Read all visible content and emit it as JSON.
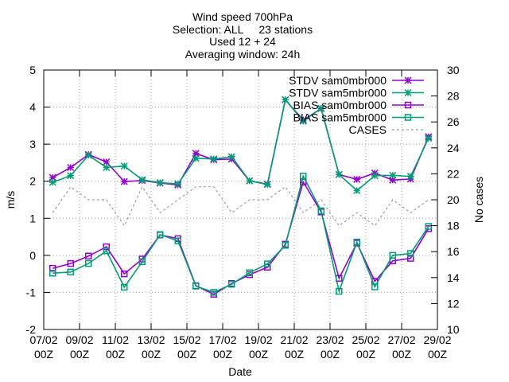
{
  "chart_data": {
    "type": "line",
    "title": "Wind speed 700hPa",
    "subtitle_lines": [
      "Selection: ALL     23 stations",
      "Used 12 + 24",
      "Averaging window: 24h"
    ],
    "xlabel": "Date",
    "ylabel": "m/s",
    "y2label": "No cases",
    "ylim": [
      -2,
      5
    ],
    "y_ticks": [
      "-2",
      "-1",
      "0",
      "1",
      "2",
      "3",
      "4",
      "5"
    ],
    "y2lim": [
      10,
      30
    ],
    "y2_ticks": [
      "10",
      "12",
      "14",
      "16",
      "18",
      "20",
      "22",
      "24",
      "26",
      "28",
      "30"
    ],
    "x_tick_labels": [
      [
        "07/02",
        "00Z"
      ],
      [
        "09/02",
        "00Z"
      ],
      [
        "11/02",
        "00Z"
      ],
      [
        "13/02",
        "00Z"
      ],
      [
        "15/02",
        "00Z"
      ],
      [
        "17/02",
        "00Z"
      ],
      [
        "19/02",
        "00Z"
      ],
      [
        "21/02",
        "00Z"
      ],
      [
        "23/02",
        "00Z"
      ],
      [
        "25/02",
        "00Z"
      ],
      [
        "27/02",
        "00Z"
      ],
      [
        "29/02",
        "00Z"
      ]
    ],
    "grid": true,
    "legend_position": "top-right",
    "x_days": [
      0,
      1,
      2,
      3,
      4,
      5,
      6,
      7,
      8,
      9,
      10,
      11,
      12,
      13,
      14,
      15,
      16,
      17,
      18,
      19,
      20,
      21
    ],
    "series": [
      {
        "name": "STDV sam0mbr000",
        "color": "#9400d3",
        "marker": "star",
        "axis": "y",
        "values": [
          2.1,
          2.37,
          2.72,
          2.52,
          1.99,
          2.02,
          1.95,
          1.9,
          2.75,
          2.58,
          2.6,
          2.01,
          1.92,
          4.2,
          3.65,
          3.96,
          2.18,
          2.05,
          2.22,
          2.03,
          2.06,
          3.2
        ]
      },
      {
        "name": "STDV sam5mbr000",
        "color": "#009e73",
        "marker": "star",
        "axis": "y",
        "values": [
          1.97,
          2.15,
          2.7,
          2.37,
          2.41,
          2.04,
          1.96,
          1.93,
          2.62,
          2.6,
          2.66,
          2.01,
          1.91,
          4.2,
          3.62,
          3.97,
          2.18,
          1.75,
          2.15,
          2.16,
          2.13,
          3.16
        ]
      },
      {
        "name": "BIAS sam0mbr000",
        "color": "#9400d3",
        "marker": "square",
        "axis": "y",
        "values": [
          -0.35,
          -0.22,
          -0.02,
          0.23,
          -0.5,
          -0.1,
          0.55,
          0.45,
          -0.82,
          -1.05,
          -0.76,
          -0.52,
          -0.32,
          0.3,
          1.98,
          1.17,
          -0.62,
          0.33,
          -0.7,
          -0.15,
          -0.08,
          0.72
        ]
      },
      {
        "name": "BIAS sam5mbr000",
        "color": "#009e73",
        "marker": "square",
        "axis": "y",
        "values": [
          -0.48,
          -0.45,
          -0.22,
          0.12,
          -0.86,
          -0.17,
          0.56,
          0.39,
          -0.83,
          -1.0,
          -0.78,
          -0.47,
          -0.23,
          0.27,
          2.14,
          1.2,
          -0.97,
          0.36,
          -0.85,
          0.0,
          0.05,
          0.78
        ]
      },
      {
        "name": "CASES",
        "color": "#a0a0a0",
        "marker": "none",
        "dashed": true,
        "axis": "y2",
        "values": [
          19,
          21,
          20,
          20,
          18,
          21,
          19,
          20,
          21,
          21,
          19,
          20,
          20,
          21,
          19,
          20,
          18,
          19,
          18,
          20,
          19,
          20
        ]
      }
    ]
  }
}
